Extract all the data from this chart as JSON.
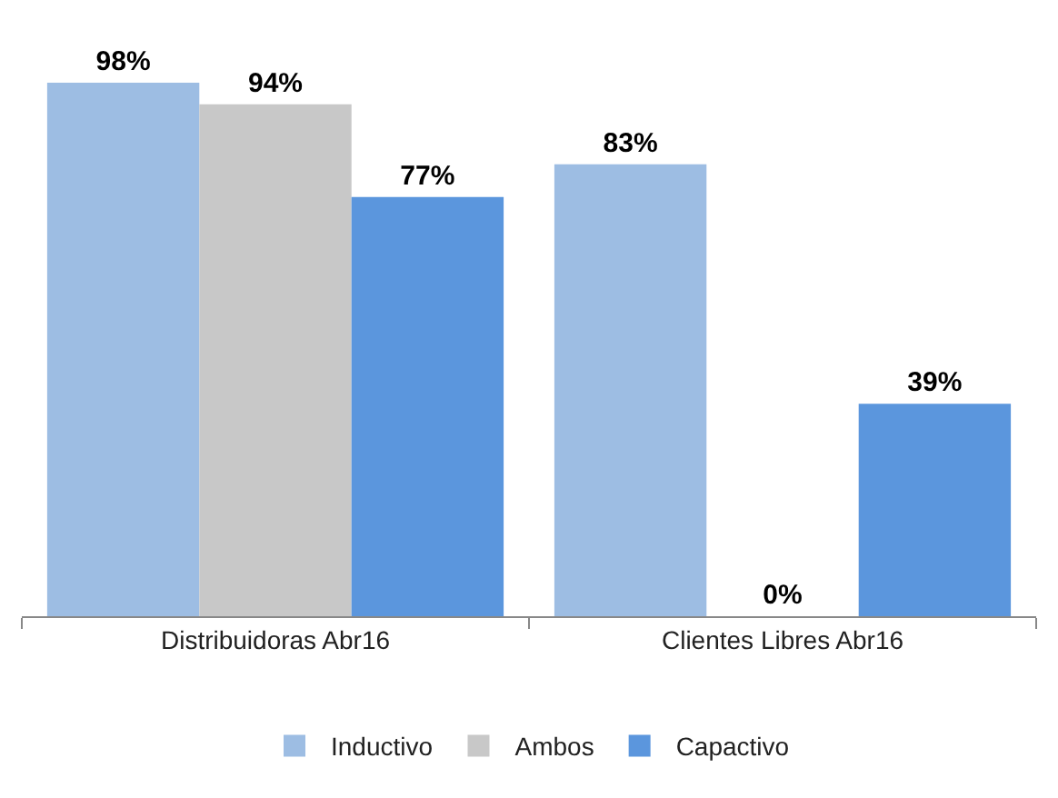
{
  "chart_data": {
    "type": "bar",
    "categories": [
      "Distribuidoras Abr16",
      "Clientes Libres Abr16"
    ],
    "series": [
      {
        "name": "Inductivo",
        "color": "#9dbde3",
        "values": [
          98,
          83
        ],
        "value_labels": [
          "98%",
          "83%"
        ]
      },
      {
        "name": "Ambos",
        "color": "#c8c8c8",
        "values": [
          94,
          0
        ],
        "value_labels": [
          "94%",
          "0%"
        ]
      },
      {
        "name": "Capactivo",
        "color": "#5b96dd",
        "values": [
          77,
          39
        ],
        "value_labels": [
          "77%",
          "39%"
        ]
      }
    ],
    "legend": "bottom"
  }
}
